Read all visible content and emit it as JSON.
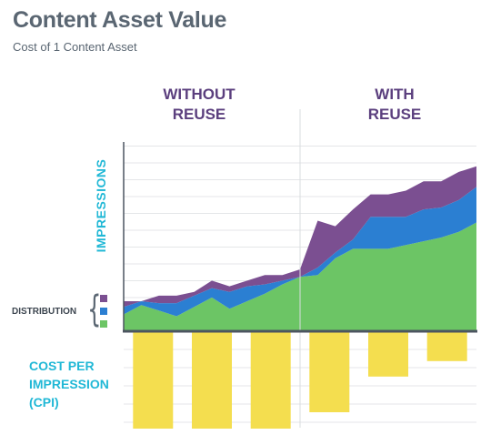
{
  "header": {
    "title": "Content Asset Value",
    "subtitle": "Cost of 1 Content Asset"
  },
  "columns": {
    "without_line1": "WITHOUT",
    "without_line2": "REUSE",
    "with_line1": "WITH",
    "with_line2": "REUSE"
  },
  "labels": {
    "impressions": "IMPRESSIONS",
    "distribution": "DISTRIBUTION",
    "cpi_line1": "COST PER",
    "cpi_line2": "IMPRESSION",
    "cpi_line3": "(CPI)"
  },
  "colors": {
    "top_band": "#7b4f91",
    "middle_band": "#2b7fd2",
    "bottom_band": "#6cc565",
    "cpi_bars": "#f4de4f",
    "axis": "#4c5560",
    "heading": "#5b3f7e",
    "accent": "#21b8d6"
  },
  "chart_data": [
    {
      "type": "area",
      "stacked": true,
      "ylabel": "IMPRESSIONS",
      "ylim": [
        0,
        10
      ],
      "grid": true,
      "x": [
        0,
        1,
        2,
        3,
        4,
        5,
        6,
        7,
        8,
        9,
        10,
        11,
        12,
        13,
        14,
        15,
        16,
        17,
        18,
        19,
        20
      ],
      "series": [
        {
          "values": [
            0.9,
            1.4,
            1.1,
            0.8,
            1.3,
            1.8,
            1.2,
            1.6,
            2.0,
            2.5,
            2.9,
            3.0,
            3.9,
            4.4,
            4.4,
            4.4,
            4.6,
            4.8,
            5.0,
            5.3,
            5.8
          ]
        },
        {
          "values": [
            0.4,
            0.2,
            0.4,
            0.7,
            0.6,
            0.5,
            0.9,
            0.8,
            0.5,
            0.2,
            0.0,
            0.4,
            0.3,
            0.5,
            1.7,
            1.7,
            1.5,
            1.7,
            1.6,
            1.7,
            1.9
          ]
        },
        {
          "values": [
            0.3,
            0.0,
            0.4,
            0.4,
            0.2,
            0.4,
            0.3,
            0.3,
            0.5,
            0.3,
            0.4,
            2.5,
            1.4,
            1.6,
            1.2,
            1.2,
            1.4,
            1.5,
            1.4,
            1.5,
            1.1
          ]
        }
      ]
    },
    {
      "type": "bar",
      "ylabel": "COST PER IMPRESSION (CPI)",
      "orientation": "downward",
      "ylim": [
        0,
        10
      ],
      "values": [
        10,
        10,
        10,
        8.3,
        4.6,
        3.0
      ]
    }
  ]
}
